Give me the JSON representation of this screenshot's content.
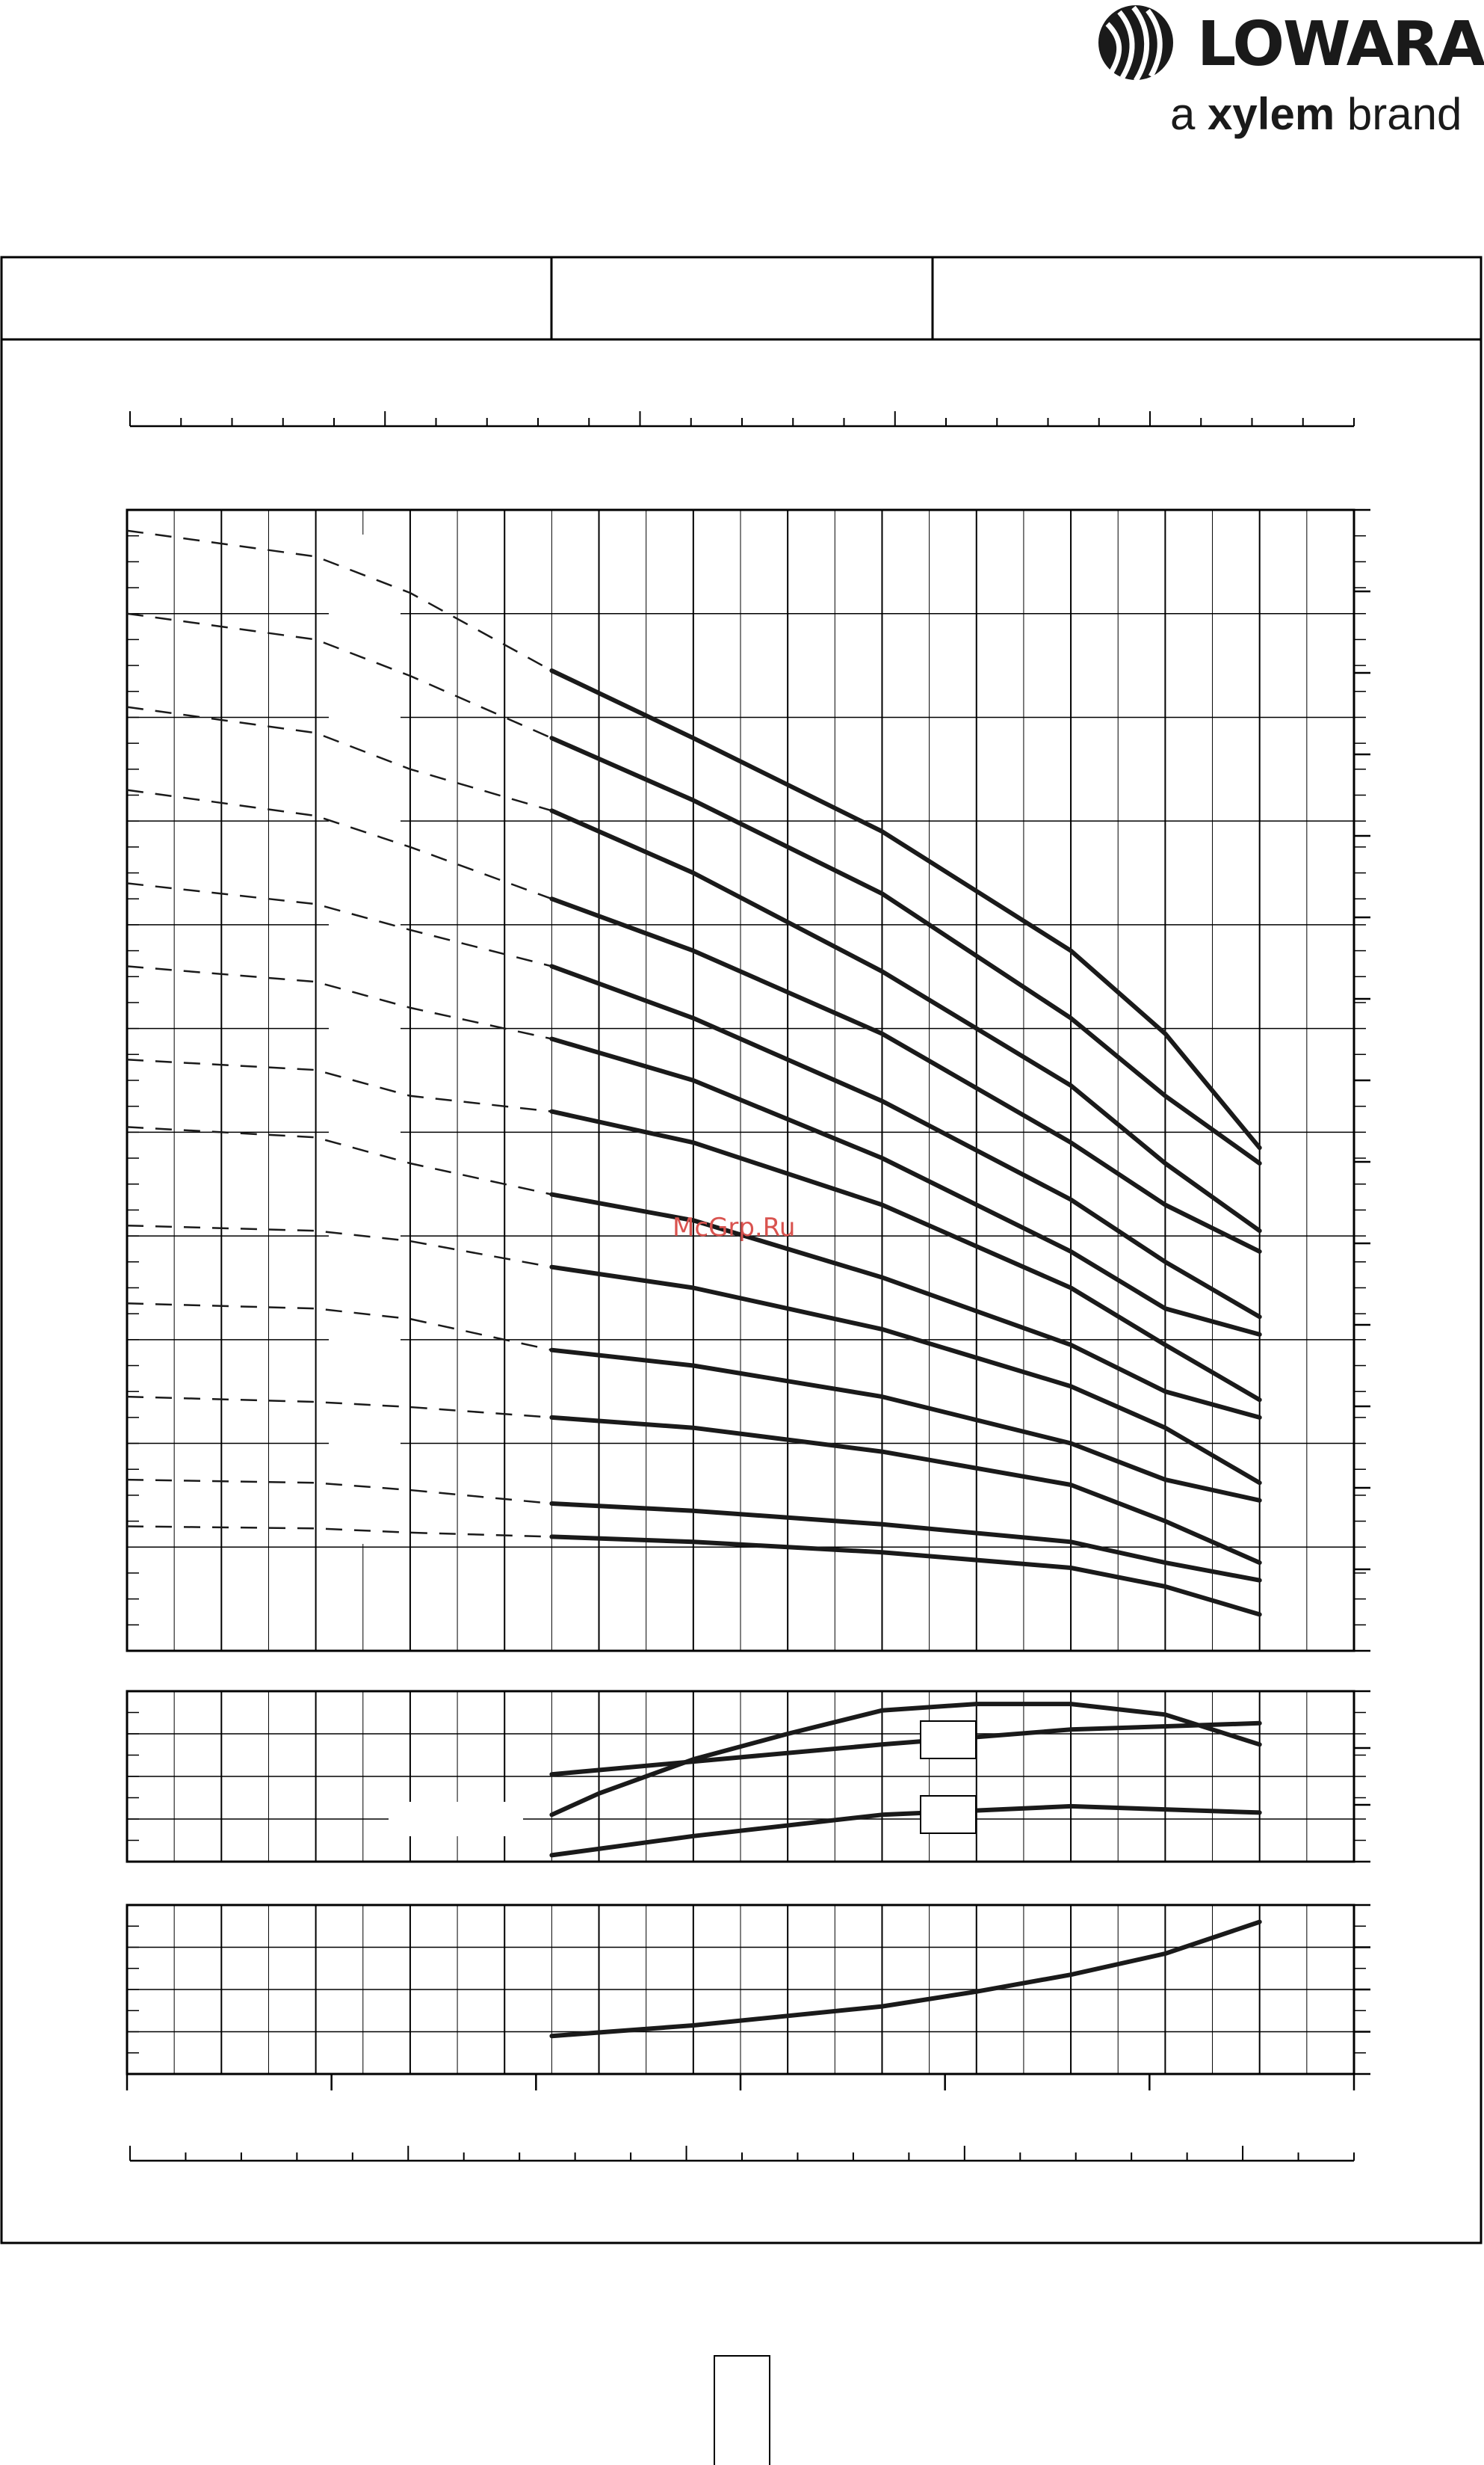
{
  "brand": {
    "name": "LOWARA",
    "tagline_prefix": "a",
    "tagline_brand": "xylem",
    "tagline_suffix": "brand",
    "logo_icon": "lowara-swirl-icon"
  },
  "watermark": "McGrp.Ru",
  "colors": {
    "ink": "#1a1a1a",
    "grid": "#000000",
    "watermark": "#d9534f",
    "background": "#ffffff"
  },
  "chart_data": [
    {
      "type": "line",
      "panel": "head",
      "xlim": [
        0,
        13
      ],
      "ylim": [
        0,
        11
      ],
      "grid": true,
      "curve_style": {
        "dashed_x_range": [
          0,
          4.5
        ],
        "solid_x_range": [
          4.5,
          12
        ]
      },
      "series": [
        {
          "x": [
            0,
            2,
            3,
            4.5,
            6,
            8,
            10,
            11,
            12
          ],
          "y": [
            10.8,
            10.55,
            10.2,
            9.45,
            8.8,
            7.9,
            6.75,
            5.95,
            4.85
          ]
        },
        {
          "x": [
            0,
            2,
            3,
            4.5,
            6,
            8,
            10,
            11,
            12
          ],
          "y": [
            10.0,
            9.75,
            9.4,
            8.8,
            8.2,
            7.3,
            6.1,
            5.35,
            4.7
          ]
        },
        {
          "x": [
            0,
            2,
            3,
            4.5,
            6,
            8,
            10,
            11,
            12
          ],
          "y": [
            9.1,
            8.85,
            8.5,
            8.1,
            7.5,
            6.55,
            5.45,
            4.7,
            4.05
          ]
        },
        {
          "x": [
            0,
            2,
            3,
            4.5,
            6,
            8,
            10,
            11,
            12
          ],
          "y": [
            8.3,
            8.05,
            7.75,
            7.25,
            6.75,
            5.95,
            4.9,
            4.3,
            3.85
          ]
        },
        {
          "x": [
            0,
            2,
            3,
            4.5,
            6,
            8,
            10,
            11,
            12
          ],
          "y": [
            7.4,
            7.2,
            6.95,
            6.6,
            6.1,
            5.3,
            4.35,
            3.75,
            3.22
          ]
        },
        {
          "x": [
            0,
            2,
            3,
            4.5,
            6,
            8,
            10,
            11,
            12
          ],
          "y": [
            6.6,
            6.45,
            6.2,
            5.9,
            5.5,
            4.75,
            3.85,
            3.3,
            3.05
          ]
        },
        {
          "x": [
            0,
            2,
            3,
            4.5,
            6,
            8,
            10,
            11,
            12
          ],
          "y": [
            5.7,
            5.6,
            5.35,
            5.2,
            4.9,
            4.3,
            3.5,
            2.95,
            2.42
          ]
        },
        {
          "x": [
            0,
            2,
            3,
            4.5,
            6,
            8,
            10,
            11,
            12
          ],
          "y": [
            5.05,
            4.95,
            4.7,
            4.4,
            4.15,
            3.6,
            2.95,
            2.5,
            2.25
          ]
        },
        {
          "x": [
            0,
            2,
            3,
            4.5,
            6,
            8,
            10,
            11,
            12
          ],
          "y": [
            4.1,
            4.05,
            3.95,
            3.7,
            3.5,
            3.1,
            2.55,
            2.15,
            1.62
          ]
        },
        {
          "x": [
            0,
            2,
            3,
            4.5,
            6,
            8,
            10,
            11,
            12
          ],
          "y": [
            3.35,
            3.3,
            3.2,
            2.9,
            2.75,
            2.45,
            2.0,
            1.65,
            1.45
          ]
        },
        {
          "x": [
            0,
            2,
            3,
            4.5,
            6,
            8,
            10,
            11,
            12
          ],
          "y": [
            2.45,
            2.4,
            2.35,
            2.25,
            2.15,
            1.92,
            1.6,
            1.25,
            0.85
          ]
        },
        {
          "x": [
            0,
            2,
            3,
            4.5,
            6,
            8,
            10,
            11,
            12
          ],
          "y": [
            1.65,
            1.62,
            1.55,
            1.42,
            1.35,
            1.22,
            1.05,
            0.85,
            0.68
          ]
        },
        {
          "x": [
            0,
            2,
            3,
            4.5,
            6,
            8,
            10,
            11,
            12
          ],
          "y": [
            1.2,
            1.18,
            1.14,
            1.1,
            1.05,
            0.95,
            0.8,
            0.62,
            0.35
          ]
        }
      ]
    },
    {
      "type": "line",
      "panel": "power-efficiency",
      "xlim": [
        0,
        13
      ],
      "ylim": [
        0,
        4
      ],
      "grid": true,
      "series": [
        {
          "x": [
            4.5,
            6,
            8,
            10,
            12
          ],
          "y": [
            2.05,
            2.35,
            2.75,
            3.1,
            3.25
          ]
        },
        {
          "x": [
            4.5,
            5,
            6,
            7,
            8,
            9,
            10,
            11,
            12
          ],
          "y": [
            1.1,
            1.6,
            2.4,
            3.0,
            3.55,
            3.7,
            3.7,
            3.45,
            2.75
          ]
        },
        {
          "x": [
            4.5,
            6,
            8,
            10,
            12
          ],
          "y": [
            0.15,
            0.6,
            1.1,
            1.3,
            1.15
          ]
        }
      ]
    },
    {
      "type": "line",
      "panel": "npsh",
      "xlim": [
        0,
        13
      ],
      "ylim": [
        0,
        4
      ],
      "grid": true,
      "series": [
        {
          "x": [
            4.5,
            6,
            8,
            9,
            10,
            11,
            12
          ],
          "y": [
            0.9,
            1.15,
            1.6,
            1.95,
            2.35,
            2.85,
            3.6
          ]
        }
      ]
    }
  ]
}
